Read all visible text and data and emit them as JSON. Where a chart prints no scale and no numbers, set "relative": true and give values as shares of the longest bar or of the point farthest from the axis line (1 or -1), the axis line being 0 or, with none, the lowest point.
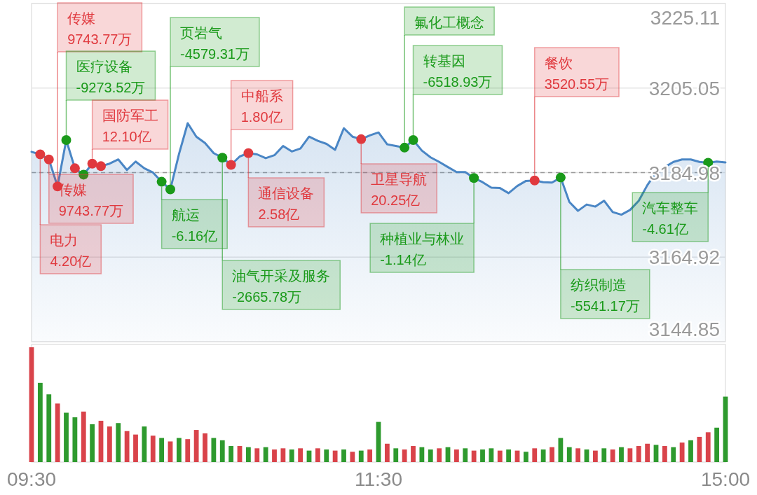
{
  "chart_data": [
    {
      "type": "area",
      "categories": [
        null,
        null,
        null,
        null,
        null,
        null,
        null,
        null,
        null,
        null,
        null,
        null,
        null,
        null,
        null,
        null,
        null,
        null,
        null,
        null,
        null,
        null,
        null,
        null,
        null,
        null,
        null,
        null,
        null,
        null,
        null,
        null,
        null,
        null,
        null,
        null,
        null,
        null,
        null,
        null,
        null,
        null,
        null,
        null,
        null,
        null,
        null,
        null,
        null,
        null,
        null,
        null,
        null,
        null,
        null,
        null,
        null,
        null,
        null,
        null,
        null,
        null,
        null,
        null,
        null,
        null,
        null,
        null,
        null,
        null,
        null,
        null,
        null,
        null,
        null,
        null,
        null,
        null,
        null,
        null,
        null
      ],
      "tick_labels": "y",
      "ylim": [
        3144.85,
        3225.11
      ],
      "yticks": [
        3144.85,
        3164.92,
        3184.98,
        3205.05,
        3225.11
      ],
      "grid": "y",
      "ref_lines": [
        {
          "axis": "y",
          "value": 3184.98,
          "color": "#9a9a9a",
          "line_style": "dashed"
        }
      ],
      "series": [
        {
          "color": "#4a86c5",
          "values": [
            3189.9,
            3189.3,
            3188.1,
            3181.7,
            3192.7,
            3186.0,
            3184.5,
            3187.1,
            3186.5,
            3187.1,
            3188.1,
            3185.6,
            3187.6,
            3186.0,
            3185.0,
            3182.8,
            3181.0,
            3189.4,
            3196.7,
            3193.5,
            3192.0,
            3189.6,
            3188.5,
            3186.8,
            3188.8,
            3189.6,
            3189.3,
            3188.4,
            3189.1,
            3191.3,
            3190.0,
            3190.7,
            3193.5,
            3192.5,
            3191.8,
            3190.4,
            3195.5,
            3193.5,
            3192.9,
            3193.8,
            3194.5,
            3191.7,
            3191.3,
            3190.9,
            3192.7,
            3190.2,
            3188.6,
            3187.5,
            3186.3,
            3185.1,
            3185.1,
            3183.7,
            3182.7,
            3181.4,
            3181.3,
            3180.1,
            3181.8,
            3183.0,
            3183.1,
            3182.7,
            3182.6,
            3183.8,
            3178.0,
            3175.9,
            3177.4,
            3176.9,
            3178.3,
            3175.6,
            3175.0,
            3176.1,
            3178.3,
            3182.0,
            3185.0,
            3186.3,
            3187.5,
            3188.1,
            3188.1,
            3187.5,
            3187.3,
            3187.6,
            3187.4
          ]
        },
        {
          "type": "scatter",
          "values": [
            null,
            3189.3,
            3188.1,
            3181.7,
            3192.7,
            3186.0,
            3184.5,
            3187.1,
            3186.5,
            null,
            null,
            null,
            null,
            null,
            null,
            3182.8,
            3181.0,
            null,
            null,
            null,
            null,
            null,
            3188.5,
            3186.8,
            null,
            3189.6,
            null,
            null,
            null,
            null,
            null,
            null,
            null,
            null,
            null,
            null,
            null,
            null,
            3192.9,
            null,
            null,
            null,
            null,
            3190.9,
            3192.7,
            null,
            null,
            null,
            null,
            null,
            null,
            3183.7,
            null,
            null,
            null,
            null,
            null,
            null,
            3183.1,
            null,
            null,
            3183.8,
            null,
            null,
            null,
            null,
            null,
            null,
            null,
            null,
            null,
            null,
            null,
            null,
            null,
            null,
            null,
            null,
            3187.3,
            null,
            null
          ],
          "colors": [
            null,
            "#e0393e",
            "#e0393e",
            "#e0393e",
            "#1a9a1a",
            "#e0393e",
            "#1a9a1a",
            "#e0393e",
            "#e0393e",
            null,
            null,
            null,
            null,
            null,
            null,
            "#1a9a1a",
            "#1a9a1a",
            null,
            null,
            null,
            null,
            null,
            "#1a9a1a",
            "#e0393e",
            null,
            "#e0393e",
            null,
            null,
            null,
            null,
            null,
            null,
            null,
            null,
            null,
            null,
            null,
            null,
            "#e0393e",
            null,
            null,
            null,
            null,
            "#1a9a1a",
            "#1a9a1a",
            null,
            null,
            null,
            null,
            null,
            null,
            "#1a9a1a",
            null,
            null,
            null,
            null,
            null,
            null,
            "#e0393e",
            null,
            null,
            "#1a9a1a",
            null,
            null,
            null,
            null,
            null,
            null,
            null,
            null,
            null,
            null,
            null,
            null,
            null,
            null,
            null,
            null,
            "#1a9a1a",
            null,
            null
          ]
        }
      ],
      "annotations": [
        "电力\n4.20亿",
        "传媒\n9743.77万",
        "传媒\n9743.77万",
        "医疗设备\n-9273.52万",
        "国防军工\n12.10亿",
        "航运\n-6.16亿",
        "页岩气\n-4579.31万",
        "油气开采及服务\n-2665.78万",
        "中船系\n1.80亿",
        "通信设备\n2.58亿",
        "卫星导航\n20.25亿",
        "氟化工概念",
        "转基因\n-6518.93万",
        "种植业与林业\n-1.14亿",
        "餐饮\n3520.55万",
        "纺织制造\n-5541.17万",
        "汽车整车\n-4.61亿"
      ]
    },
    {
      "type": "bar",
      "relative": true,
      "categories": [
        "09:30",
        null,
        null,
        null,
        null,
        null,
        null,
        null,
        null,
        null,
        null,
        null,
        null,
        null,
        null,
        null,
        null,
        null,
        null,
        null,
        null,
        null,
        null,
        null,
        null,
        null,
        null,
        null,
        null,
        null,
        null,
        null,
        null,
        null,
        null,
        null,
        null,
        null,
        null,
        null,
        "11:30",
        null,
        null,
        null,
        null,
        null,
        null,
        null,
        null,
        null,
        null,
        null,
        null,
        null,
        null,
        null,
        null,
        null,
        null,
        null,
        null,
        null,
        null,
        null,
        null,
        null,
        null,
        null,
        null,
        null,
        null,
        null,
        null,
        null,
        null,
        null,
        null,
        null,
        null,
        null,
        "15:00"
      ],
      "tick_labels": "x",
      "values": [
        1.0,
        0.69,
        0.59,
        0.51,
        0.43,
        0.39,
        0.44,
        0.33,
        0.36,
        0.31,
        0.34,
        0.27,
        0.24,
        0.31,
        0.23,
        0.21,
        0.18,
        0.21,
        0.2,
        0.28,
        0.25,
        0.21,
        0.19,
        0.14,
        0.14,
        0.13,
        0.12,
        0.13,
        0.11,
        0.12,
        0.11,
        0.12,
        0.1,
        0.12,
        0.11,
        0.1,
        0.11,
        0.09,
        0.1,
        0.11,
        0.35,
        0.16,
        0.12,
        0.11,
        0.14,
        0.13,
        0.11,
        0.12,
        0.13,
        0.11,
        0.12,
        0.1,
        0.11,
        0.12,
        0.1,
        0.11,
        0.1,
        0.09,
        0.12,
        0.11,
        0.13,
        0.21,
        0.13,
        0.12,
        0.11,
        0.1,
        0.12,
        0.11,
        0.13,
        0.12,
        0.14,
        0.16,
        0.15,
        0.14,
        0.13,
        0.17,
        0.19,
        0.22,
        0.26,
        0.3,
        0.57
      ],
      "colors": [
        "#d9434a",
        "#2e9a2e",
        "#2e9a2e",
        "#d9434a",
        "#2e9a2e",
        "#2e9a2e",
        "#d9434a",
        "#2e9a2e",
        "#d9434a",
        "#d9434a",
        "#2e9a2e",
        "#d9434a",
        "#d9434a",
        "#2e9a2e",
        "#d9434a",
        "#2e9a2e",
        "#d9434a",
        "#2e9a2e",
        "#d9434a",
        "#d9434a",
        "#d9434a",
        "#2e9a2e",
        "#2e9a2e",
        "#2e9a2e",
        "#d9434a",
        "#2e9a2e",
        "#d9434a",
        "#2e9a2e",
        "#d9434a",
        "#d9434a",
        "#2e9a2e",
        "#d9434a",
        "#2e9a2e",
        "#d9434a",
        "#2e9a2e",
        "#d9434a",
        "#2e9a2e",
        "#d9434a",
        "#2e9a2e",
        "#d9434a",
        "#2e9a2e",
        "#d9434a",
        "#2e9a2e",
        "#d9434a",
        "#d9434a",
        "#2e9a2e",
        "#2e9a2e",
        "#d9434a",
        "#2e9a2e",
        "#d9434a",
        "#2e9a2e",
        "#d9434a",
        "#2e9a2e",
        "#2e9a2e",
        "#d9434a",
        "#2e9a2e",
        "#d9434a",
        "#2e9a2e",
        "#d9434a",
        "#2e9a2e",
        "#d9434a",
        "#2e9a2e",
        "#2e9a2e",
        "#d9434a",
        "#2e9a2e",
        "#d9434a",
        "#2e9a2e",
        "#d9434a",
        "#2e9a2e",
        "#d9434a",
        "#d9434a",
        "#d9434a",
        "#2e9a2e",
        "#d9434a",
        "#2e9a2e",
        "#d9434a",
        "#2e9a2e",
        "#d9434a",
        "#d9434a",
        "#2e9a2e",
        "#2e9a2e"
      ]
    }
  ]
}
